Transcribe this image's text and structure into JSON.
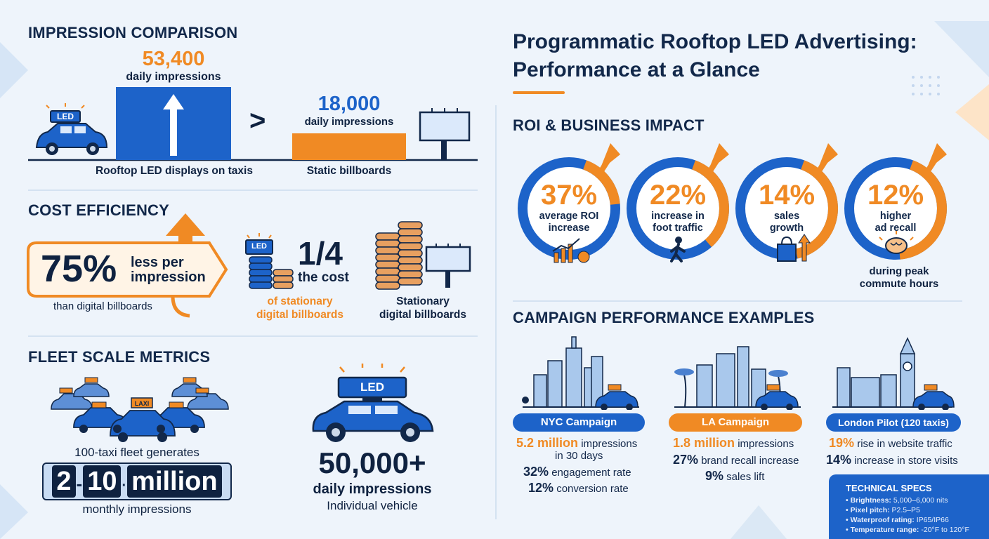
{
  "title": {
    "line1": "Programmatic Rooftop LED Advertising:",
    "line2": "Performance at a Glance"
  },
  "impression": {
    "heading": "IMPRESSION COMPARISON",
    "led_value": "53,400",
    "led_label": "daily impressions",
    "led_caption": "Rooftop LED displays on taxis",
    "comparator": ">",
    "static_value": "18,000",
    "static_label": "daily impressions",
    "static_caption": "Static billboards",
    "led_sign": "LED"
  },
  "cost": {
    "heading": "COST EFFICIENCY",
    "percent": "75%",
    "less_line1": "less per",
    "less_line2": "impression",
    "than": "than digital billboards",
    "fraction": "1/4",
    "the_cost": "the cost",
    "of_line1": "of stationary",
    "of_line2": "digital billboards",
    "stationary_line1": "Stationary",
    "stationary_line2": "digital billboards",
    "led_sign": "LED"
  },
  "fleet": {
    "heading": "FLEET SCALE METRICS",
    "fleet_text": "100-taxi fleet generates",
    "range_a": "2",
    "range_b": "10",
    "range_unit": "million",
    "monthly": "monthly impressions",
    "vehicle_value": "50,000+",
    "vehicle_label": "daily impressions",
    "vehicle_sub": "Individual vehicle",
    "led_sign": "LED",
    "mini_sign": "LAXI"
  },
  "roi": {
    "heading": "ROI & BUSINESS IMPACT",
    "items": [
      {
        "value": "37%",
        "line1": "average ROI",
        "line2": "increase",
        "level": 0.37
      },
      {
        "value": "22%",
        "line1": "increase in",
        "line2": "foot traffic",
        "level": 0.22
      },
      {
        "value": "14%",
        "line1": "sales",
        "line2": "growth",
        "level": 0.14
      },
      {
        "value": "12%",
        "line1": "higher",
        "line2": "ad recall",
        "level": 0.12
      }
    ],
    "peak_line1": "during peak",
    "peak_line2": "commute hours"
  },
  "campaigns": {
    "heading": "CAMPAIGN PERFORMANCE EXAMPLES",
    "nyc": {
      "label": "NYC Campaign",
      "l1_strong": "5.2 million",
      "l1_rest": " impressions",
      "l1b": "in 30 days",
      "l2_strong": "32%",
      "l2_rest": " engagement rate",
      "l3_strong": "12%",
      "l3_rest": " conversion rate"
    },
    "la": {
      "label": "LA Campaign",
      "l1_strong": "1.8 million",
      "l1_rest": " impressions",
      "l2_strong": "27%",
      "l2_rest": " brand recall increase",
      "l3_strong": "9%",
      "l3_rest": " sales lift"
    },
    "london": {
      "label": "London Pilot (120 taxis)",
      "l1_strong": "19%",
      "l1_rest": " rise in website traffic",
      "l2_strong": "14%",
      "l2_rest": " increase in store visits"
    }
  },
  "specs": {
    "heading": "TECHNICAL SPECS",
    "items": [
      {
        "k": "Brightness:",
        "v": " 5,000–6,000 nits"
      },
      {
        "k": "Pixel pitch:",
        "v": " P2.5–P5"
      },
      {
        "k": "Waterproof rating:",
        "v": " IP65/IP66"
      },
      {
        "k": "Temperature range:",
        "v": " -20°F to 120°F"
      }
    ]
  },
  "colors": {
    "blue": "#1d63c9",
    "orange": "#f08a24",
    "navy": "#0f2240"
  }
}
